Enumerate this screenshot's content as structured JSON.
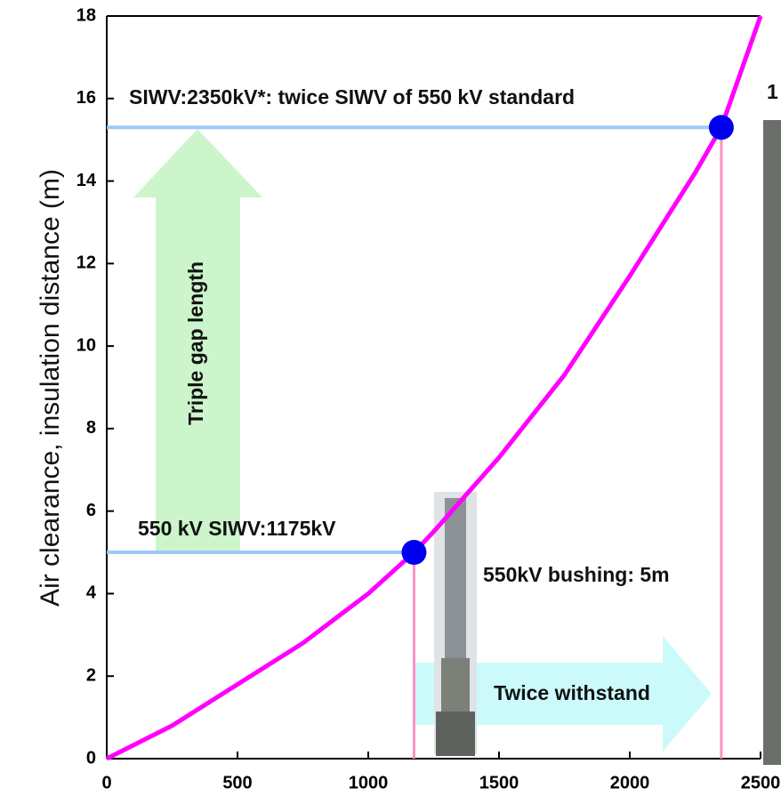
{
  "chart_data": {
    "type": "line",
    "y_label": "Air clearance, insulation distance (m)",
    "x": [
      0,
      250,
      500,
      750,
      1000,
      1175,
      1250,
      1500,
      1750,
      2000,
      2250,
      2350,
      2500
    ],
    "values": [
      0,
      0.8,
      1.8,
      2.8,
      4.0,
      5.0,
      5.5,
      7.3,
      9.3,
      11.7,
      14.2,
      15.3,
      18
    ],
    "color": "#ff00ff",
    "markers": {
      "x": [
        1175,
        2350
      ],
      "values": [
        5,
        15.3
      ],
      "color": "#0000ee"
    },
    "xlim": [
      0,
      2500
    ],
    "xticks": [
      0,
      500,
      1000,
      1500,
      2000,
      2500
    ],
    "ylim": [
      0,
      18
    ],
    "yticks": [
      0,
      2,
      4,
      6,
      8,
      10,
      12,
      14,
      16,
      18
    ],
    "annotations": [
      "SIWV:2350kV*: twice SIWV of 550 kV standard",
      "550 kV SIWV:1175kV",
      "550kV bushing: 5m",
      "Twice withstand",
      "Triple gap length",
      "1"
    ]
  }
}
